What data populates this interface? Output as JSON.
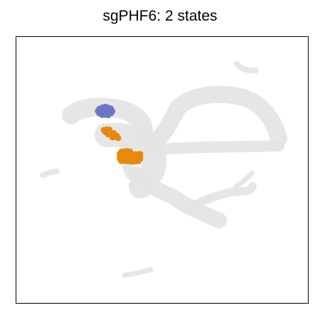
{
  "chart_data": {
    "type": "scatter",
    "title": "sgPHF6: 2 states",
    "xlabel": "",
    "ylabel": "",
    "grid": false,
    "axes_ticks": false,
    "xlim": [
      0,
      100
    ],
    "ylim": [
      0,
      100
    ],
    "background_color": "#e3e3e3",
    "highlight_series": [
      {
        "color": "#6a78c4",
        "points": [
          [
            28.5,
            72.9
          ],
          [
            29.5,
            73.4
          ],
          [
            30.5,
            73.7
          ],
          [
            31.5,
            73.4
          ],
          [
            32.5,
            73.0
          ],
          [
            28.0,
            72.1
          ],
          [
            29.0,
            72.3
          ],
          [
            30.0,
            72.5
          ],
          [
            31.0,
            72.4
          ],
          [
            32.0,
            72.1
          ],
          [
            33.0,
            72.0
          ],
          [
            28.5,
            71.2
          ],
          [
            29.5,
            71.3
          ],
          [
            30.5,
            71.5
          ],
          [
            31.5,
            71.3
          ],
          [
            32.5,
            71.2
          ],
          [
            29.5,
            70.6
          ],
          [
            30.5,
            70.7
          ],
          [
            31.5,
            70.5
          ]
        ]
      },
      {
        "color": "#e8890c",
        "points": [
          [
            30.0,
            65.0
          ],
          [
            31.0,
            65.2
          ],
          [
            32.0,
            65.1
          ],
          [
            30.5,
            64.2
          ],
          [
            31.5,
            64.3
          ],
          [
            32.5,
            64.0
          ],
          [
            33.5,
            63.8
          ],
          [
            31.5,
            63.3
          ],
          [
            32.5,
            63.4
          ],
          [
            33.5,
            63.0
          ],
          [
            34.5,
            62.8
          ],
          [
            33.0,
            62.2
          ],
          [
            34.0,
            62.3
          ],
          [
            35.0,
            61.9
          ],
          [
            36.0,
            56.8
          ],
          [
            37.0,
            57.0
          ],
          [
            38.0,
            57.1
          ],
          [
            39.0,
            56.9
          ],
          [
            35.5,
            56.0
          ],
          [
            36.5,
            56.1
          ],
          [
            37.5,
            56.3
          ],
          [
            38.5,
            56.2
          ],
          [
            39.5,
            56.0
          ],
          [
            40.5,
            55.9
          ],
          [
            41.5,
            55.9
          ],
          [
            42.5,
            56.0
          ],
          [
            35.5,
            55.1
          ],
          [
            36.5,
            55.2
          ],
          [
            37.5,
            55.4
          ],
          [
            38.5,
            55.3
          ],
          [
            39.5,
            55.1
          ],
          [
            40.5,
            55.0
          ],
          [
            41.5,
            55.0
          ],
          [
            42.5,
            55.1
          ],
          [
            35.5,
            54.2
          ],
          [
            36.5,
            54.3
          ],
          [
            37.5,
            54.4
          ],
          [
            38.5,
            54.3
          ],
          [
            39.5,
            54.2
          ],
          [
            40.5,
            54.1
          ],
          [
            41.5,
            54.1
          ],
          [
            42.5,
            54.2
          ],
          [
            36.0,
            53.3
          ],
          [
            37.0,
            53.4
          ],
          [
            38.0,
            53.3
          ],
          [
            39.0,
            53.2
          ],
          [
            40.0,
            53.1
          ],
          [
            41.0,
            53.2
          ],
          [
            42.0,
            53.3
          ]
        ]
      }
    ]
  }
}
